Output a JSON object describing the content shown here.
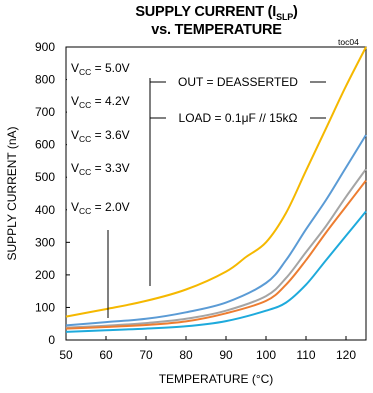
{
  "title_line1": "SUPPLY CURRENT (I",
  "title_line1_sub": "SLP",
  "title_line1_end": ")",
  "title_line2": "vs. TEMPERATURE",
  "tag": "toc04",
  "annotations": [
    "OUT = DEASSERTED",
    "LOAD = 0.1μF // 15kΩ"
  ],
  "chart_data": {
    "type": "line",
    "xlabel": "TEMPERATURE (°C)",
    "ylabel": "SUPPLY CURRENT (nA)",
    "xlim": [
      50,
      125
    ],
    "ylim": [
      0,
      900
    ],
    "xticks": [
      50,
      60,
      70,
      80,
      90,
      100,
      110,
      120
    ],
    "yticks": [
      0,
      100,
      200,
      300,
      400,
      500,
      600,
      700,
      800,
      900
    ],
    "grid": false,
    "legend_placement": "left",
    "series": [
      {
        "name": "VCC = 5.0V",
        "name_main": "V",
        "name_sub": "CC",
        "name_rest": " = 5.0V",
        "color": "#f5b800",
        "x": [
          50,
          60,
          70,
          80,
          90,
          95,
          100,
          105,
          110,
          115,
          120,
          125
        ],
        "y": [
          72,
          95,
          120,
          155,
          210,
          255,
          300,
          390,
          520,
          650,
          780,
          900
        ]
      },
      {
        "name": "VCC = 4.2V",
        "name_main": "V",
        "name_sub": "CC",
        "name_rest": " = 4.2V",
        "color": "#5b9bd5",
        "x": [
          50,
          60,
          70,
          80,
          90,
          100,
          105,
          110,
          115,
          120,
          125
        ],
        "y": [
          45,
          55,
          65,
          85,
          115,
          175,
          245,
          340,
          430,
          530,
          630
        ]
      },
      {
        "name": "VCC = 3.6V",
        "name_main": "V",
        "name_sub": "CC",
        "name_rest": " = 3.6V",
        "color": "#a5a5a5",
        "x": [
          50,
          60,
          70,
          80,
          90,
          100,
          105,
          110,
          115,
          120,
          125
        ],
        "y": [
          38,
          44,
          52,
          65,
          90,
          135,
          190,
          270,
          350,
          440,
          525
        ]
      },
      {
        "name": "VCC = 3.3V",
        "name_main": "V",
        "name_sub": "CC",
        "name_rest": " = 3.3V",
        "color": "#ed7d31",
        "x": [
          50,
          60,
          70,
          80,
          90,
          100,
          105,
          110,
          115,
          120,
          125
        ],
        "y": [
          35,
          40,
          46,
          57,
          82,
          120,
          170,
          245,
          330,
          410,
          490
        ]
      },
      {
        "name": "VCC = 2.0V",
        "name_main": "V",
        "name_sub": "CC",
        "name_rest": " = 2.0V",
        "color": "#1eaadc",
        "x": [
          50,
          60,
          70,
          80,
          90,
          100,
          105,
          110,
          115,
          120,
          125
        ],
        "y": [
          25,
          30,
          35,
          42,
          58,
          90,
          115,
          170,
          245,
          320,
          395
        ]
      }
    ]
  }
}
